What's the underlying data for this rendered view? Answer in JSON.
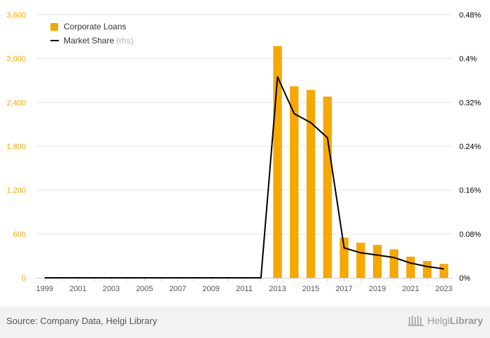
{
  "chart_data": {
    "type": "bar",
    "x": [
      "1999",
      "2000",
      "2001",
      "2002",
      "2003",
      "2004",
      "2005",
      "2006",
      "2007",
      "2008",
      "2009",
      "2010",
      "2011",
      "2012",
      "2013",
      "2014",
      "2015",
      "2016",
      "2017",
      "2018",
      "2019",
      "2020",
      "2021",
      "2022",
      "2023"
    ],
    "x_tick_labels": [
      "1999",
      "2001",
      "2003",
      "2005",
      "2007",
      "2009",
      "2011",
      "2013",
      "2015",
      "2017",
      "2019",
      "2021",
      "2023"
    ],
    "series": [
      {
        "name": "Corporate Loans",
        "type": "bar",
        "axis": "left",
        "color": "#f5a800",
        "values": [
          0,
          0,
          0,
          0,
          0,
          0,
          0,
          0,
          0,
          0,
          0,
          0,
          0,
          0,
          3170,
          2620,
          2570,
          2480,
          550,
          480,
          450,
          390,
          290,
          230,
          190
        ]
      },
      {
        "name": "Market Share",
        "type": "line",
        "axis": "right",
        "color": "#000000",
        "values": [
          0,
          0,
          0,
          0,
          0,
          0,
          0,
          0,
          0,
          0,
          0,
          0,
          0,
          0,
          0.003665,
          0.002994,
          0.002831,
          0.002554,
          0.000547,
          0.000456,
          0.000415,
          0.00037,
          0.000269,
          0.000205,
          0.000164
        ]
      }
    ],
    "y_left": {
      "range": [
        0,
        3600
      ],
      "ticks": [
        0,
        600,
        1200,
        1800,
        2400,
        3000,
        3600
      ],
      "tick_labels": [
        "0",
        "600",
        "1,200",
        "1,800",
        "2,400",
        "3,000",
        "3,600"
      ],
      "color": "#f5a800"
    },
    "y_right": {
      "range": [
        0,
        0.0048
      ],
      "ticks": [
        0,
        0.0008,
        0.0016,
        0.0024,
        0.0032,
        0.004,
        0.0048
      ],
      "tick_labels": [
        "0%",
        "0.08%",
        "0.16%",
        "0.24%",
        "0.32%",
        "0.4%",
        "0.48%"
      ],
      "color": "#000000"
    },
    "grid": true,
    "legend": {
      "placement": "top-left",
      "bar_label": "Corporate Loans",
      "line_label": "Market Share",
      "line_suffix": "(rhs)"
    }
  },
  "footer": {
    "source": "Source: Company Data, Helgi Library",
    "brand_part1": "Helgi",
    "brand_part2": "Library"
  }
}
